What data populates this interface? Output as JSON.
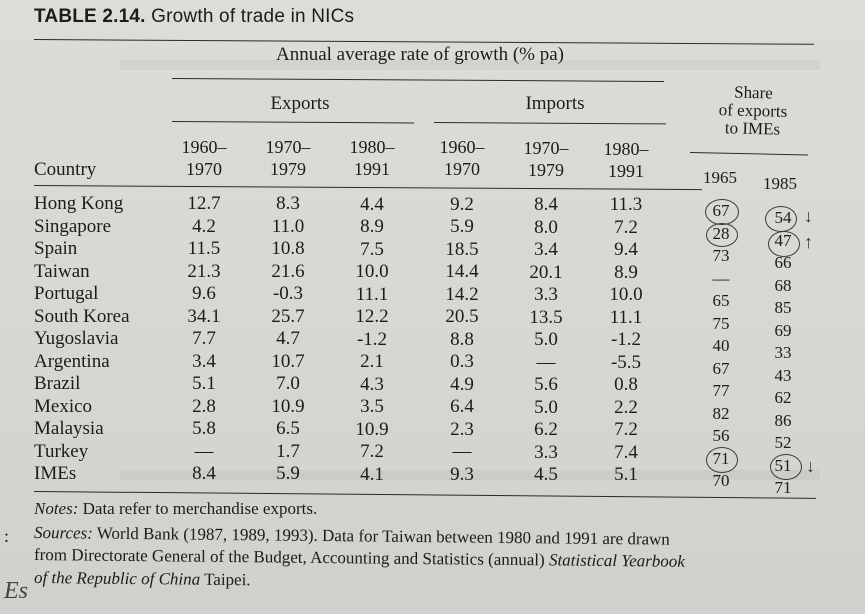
{
  "table": {
    "label": "TABLE 2.14.",
    "caption": "Growth of trade in NICs",
    "super_header": "Annual average rate of growth (% pa)",
    "group_exports": "Exports",
    "group_imports": "Imports",
    "group_share": [
      "Share",
      "of exports",
      "to IMEs"
    ],
    "country_header": "Country",
    "period_headers": [
      [
        "1960–",
        "1970"
      ],
      [
        "1970–",
        "1979"
      ],
      [
        "1980–",
        "1991"
      ],
      [
        "1960–",
        "1970"
      ],
      [
        "1970–",
        "1979"
      ],
      [
        "1980–",
        "1991"
      ]
    ],
    "share_years": [
      "1965",
      "1985"
    ],
    "rows": [
      {
        "country": "Hong Kong",
        "values": [
          "12.7",
          "8.3",
          "4.4",
          "9.2",
          "8.4",
          "11.3"
        ],
        "share": [
          "67",
          "54"
        ]
      },
      {
        "country": "Singapore",
        "values": [
          "4.2",
          "11.0",
          "8.9",
          "5.9",
          "8.0",
          "7.2"
        ],
        "share": [
          "28",
          "47"
        ]
      },
      {
        "country": "Spain",
        "values": [
          "11.5",
          "10.8",
          "7.5",
          "18.5",
          "3.4",
          "9.4"
        ],
        "share": [
          "73",
          "66"
        ]
      },
      {
        "country": "Taiwan",
        "values": [
          "21.3",
          "21.6",
          "10.0",
          "14.4",
          "20.1",
          "8.9"
        ],
        "share": [
          "—",
          "68"
        ]
      },
      {
        "country": "Portugal",
        "values": [
          "9.6",
          "-0.3",
          "11.1",
          "14.2",
          "3.3",
          "10.0"
        ],
        "share": [
          "65",
          "85"
        ]
      },
      {
        "country": "South Korea",
        "values": [
          "34.1",
          "25.7",
          "12.2",
          "20.5",
          "13.5",
          "11.1"
        ],
        "share": [
          "75",
          "69"
        ]
      },
      {
        "country": "Yugoslavia",
        "values": [
          "7.7",
          "4.7",
          "-1.2",
          "8.8",
          "5.0",
          "-1.2"
        ],
        "share": [
          "40",
          "33"
        ]
      },
      {
        "country": "Argentina",
        "values": [
          "3.4",
          "10.7",
          "2.1",
          "0.3",
          "—",
          "-5.5"
        ],
        "share": [
          "67",
          "43"
        ]
      },
      {
        "country": "Brazil",
        "values": [
          "5.1",
          "7.0",
          "4.3",
          "4.9",
          "5.6",
          "0.8"
        ],
        "share": [
          "77",
          "62"
        ]
      },
      {
        "country": "Mexico",
        "values": [
          "2.8",
          "10.9",
          "3.5",
          "6.4",
          "5.0",
          "2.2"
        ],
        "share": [
          "82",
          "86"
        ]
      },
      {
        "country": "Malaysia",
        "values": [
          "5.8",
          "6.5",
          "10.9",
          "2.3",
          "6.2",
          "7.2"
        ],
        "share": [
          "56",
          "52"
        ]
      },
      {
        "country": "Turkey",
        "values": [
          "—",
          "1.7",
          "7.2",
          "—",
          "3.3",
          "7.4"
        ],
        "share": [
          "71",
          "51"
        ]
      },
      {
        "country": "IMEs",
        "values": [
          "8.4",
          "5.9",
          "4.1",
          "9.3",
          "4.5",
          "5.1"
        ],
        "share": [
          "70",
          "71"
        ]
      }
    ],
    "notes_label": "Notes:",
    "notes_text": " Data refer to merchandise exports.",
    "sources_label": "Sources:",
    "sources_line1": " World Bank (1987, 1989, 1993). Data for Taiwan between 1980 and 1991 are drawn",
    "sources_line2_plain": "from Directorate General of the Budget, Accounting and Statistics (annual) ",
    "sources_line2_italic": "Statistical Yearbook",
    "sources_line3_italic": "of the Republic of China",
    "sources_line3_plain": " Taipei."
  },
  "handwritten": {
    "arrow_down": "↓",
    "arrow_up": "↑",
    "margin_colon": ":",
    "margin_scribble": "Es"
  }
}
